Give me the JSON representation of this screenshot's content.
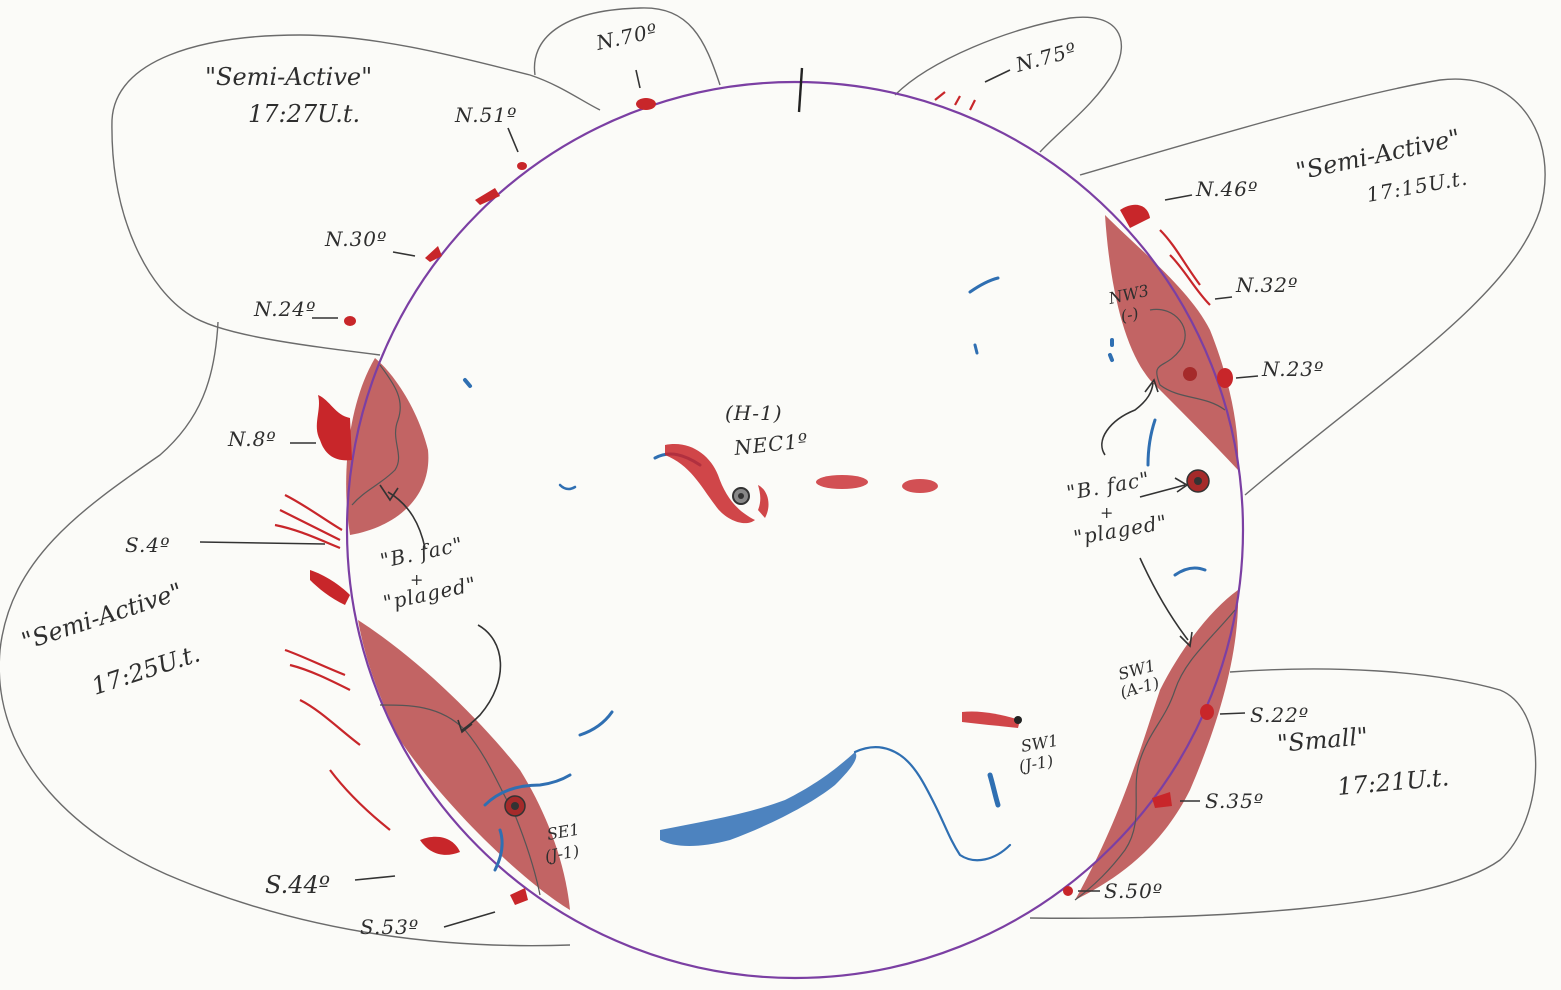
{
  "latitude_labels": {
    "n70": "N.70º",
    "n75": "N.75º",
    "n51": "N.51º",
    "n30": "N.30º",
    "n24": "N.24º",
    "n8": "N.8º",
    "s4": "S.4º",
    "s44": "S.44º",
    "s53": "S.53º",
    "n46": "N.46º",
    "n32": "N.32º",
    "n23": "N.23º",
    "s22": "S.22º",
    "s35": "S.35º",
    "s50": "S.50º"
  },
  "zones": {
    "top_left": {
      "line1": "\"Semi-Active\"",
      "line2": "17:27U.t."
    },
    "top_right": {
      "line1": "\"Semi-Active\"",
      "line2": "17:15U.t."
    },
    "left": {
      "line1": "\"Semi-Active\"",
      "line2": "17:25U.t."
    },
    "bottom_right": {
      "line1": "\"Small\"",
      "line2": "17:21U.t."
    }
  },
  "regions": {
    "center": {
      "line1": "(H-1)",
      "line2": "NEC1º"
    },
    "nw3": {
      "line1": "NW3",
      "line2": "(-)"
    },
    "sw1_right": {
      "line1": "SW1",
      "line2": "(A-1)"
    },
    "sw1_lower": {
      "line1": "SW1",
      "line2": "(J-1)"
    },
    "se1": {
      "line1": "SE1",
      "line2": "(J-1)"
    }
  },
  "notes": {
    "left": {
      "line1": "\"B. fac\"",
      "line2": "+",
      "line3": "\"plaged\""
    },
    "right": {
      "line1": "\"B. fac\"",
      "line2": "+",
      "line3": "\"plaged\""
    }
  },
  "colors": {
    "disk_outline": "#7b3fa3",
    "prominence_red": "#c8262a",
    "plage_red": "#b23a3a",
    "filament_blue": "#2f6fb2"
  }
}
